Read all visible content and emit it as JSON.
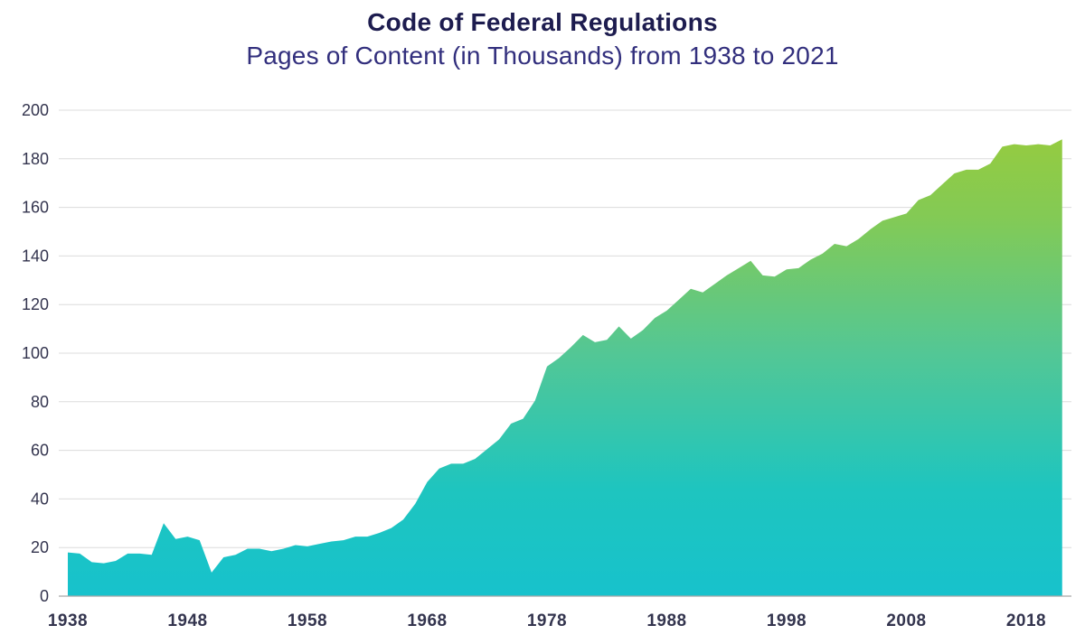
{
  "header": {
    "title": "Code of Federal Regulations",
    "subtitle": "Pages of Content (in Thousands) from 1938 to 2021"
  },
  "chart_data": {
    "type": "area",
    "title": "Code of Federal Regulations",
    "subtitle": "Pages of Content (in Thousands) from 1938 to 2021",
    "xlabel": "",
    "ylabel": "Pages of Content (in Thousands)",
    "ylim": [
      0,
      200
    ],
    "grid": "horizontal",
    "legend": "none",
    "years": [
      1938,
      1939,
      1940,
      1941,
      1942,
      1943,
      1944,
      1945,
      1946,
      1947,
      1948,
      1949,
      1950,
      1951,
      1952,
      1953,
      1954,
      1955,
      1956,
      1957,
      1958,
      1959,
      1960,
      1961,
      1962,
      1963,
      1964,
      1965,
      1966,
      1967,
      1968,
      1969,
      1970,
      1971,
      1972,
      1973,
      1974,
      1975,
      1976,
      1977,
      1978,
      1979,
      1980,
      1981,
      1982,
      1983,
      1984,
      1985,
      1986,
      1987,
      1988,
      1989,
      1990,
      1991,
      1992,
      1993,
      1994,
      1995,
      1996,
      1997,
      1998,
      1999,
      2000,
      2001,
      2002,
      2003,
      2004,
      2005,
      2006,
      2007,
      2008,
      2009,
      2010,
      2011,
      2012,
      2013,
      2014,
      2015,
      2016,
      2017,
      2018,
      2019,
      2020,
      2021
    ],
    "values": [
      18,
      17.5,
      14,
      13.5,
      14.5,
      17.5,
      17.5,
      17,
      30,
      23.5,
      24.5,
      23,
      9.7,
      16,
      17,
      19.5,
      19.5,
      18.5,
      19.5,
      21,
      20.5,
      21.5,
      22.5,
      23,
      24.5,
      24.5,
      26,
      28,
      31.5,
      38,
      47,
      52.5,
      54.5,
      54.5,
      56.5,
      60.5,
      64.5,
      71,
      73,
      80.5,
      94.5,
      98,
      102.5,
      107.5,
      104.5,
      105.5,
      111,
      106,
      109.5,
      114.5,
      117.5,
      122,
      126.5,
      125,
      128.5,
      132,
      135,
      138,
      132,
      131.5,
      134.5,
      135,
      138.5,
      141,
      145,
      144,
      147,
      151,
      154.5,
      156,
      157.5,
      163,
      165,
      169.5,
      174,
      175.5,
      175.5,
      178,
      185,
      186,
      185.5,
      186,
      185.5,
      188
    ],
    "xticks": [
      1938,
      1948,
      1958,
      1968,
      1978,
      1988,
      1998,
      2008,
      2018
    ],
    "yticks": [
      0,
      20,
      40,
      60,
      80,
      100,
      120,
      140,
      160,
      180,
      200
    ],
    "gradient_stops": [
      {
        "offset": 0,
        "color": "#17c2cc"
      },
      {
        "offset": 0.22,
        "color": "#1ec5bf"
      },
      {
        "offset": 0.5,
        "color": "#53c795"
      },
      {
        "offset": 0.78,
        "color": "#83ca55"
      },
      {
        "offset": 1,
        "color": "#9bcc39"
      }
    ],
    "colors": {
      "fill_bottom": "#17c2cc",
      "fill_top": "#9bcc39",
      "gridline": "#dcdcdc",
      "axis_line": "#a8a8a8",
      "axis_text": "#33344e",
      "title_text": "#1d1c4f",
      "subtitle_text": "#322f7d"
    }
  }
}
